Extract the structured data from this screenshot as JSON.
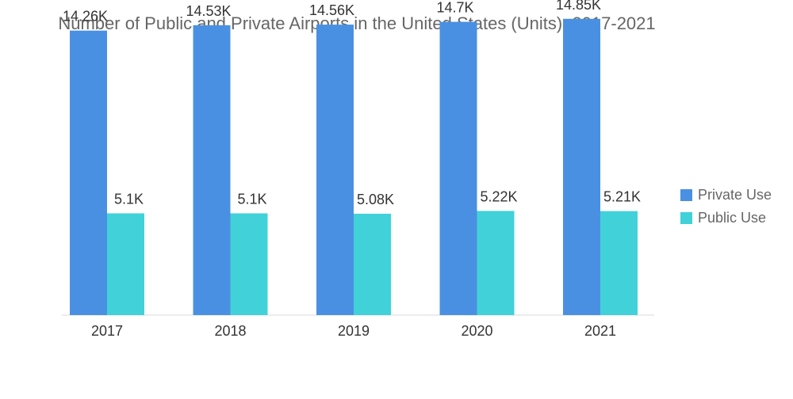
{
  "title": "Number of Public and Private Airports in the United States (Units), 2017-2021",
  "chart_data": {
    "type": "bar",
    "title": "Number of Public and Private Airports in the United States (Units), 2017-2021",
    "categories": [
      "2017",
      "2018",
      "2019",
      "2020",
      "2021"
    ],
    "series": [
      {
        "name": "Private Use",
        "color": "#4a90e2",
        "values": [
          14260,
          14530,
          14560,
          14700,
          14850
        ],
        "labels": [
          "14.26K",
          "14.53K",
          "14.56K",
          "14.7K",
          "14.85K"
        ]
      },
      {
        "name": "Public Use",
        "color": "#40d1d9",
        "values": [
          5100,
          5100,
          5080,
          5220,
          5210
        ],
        "labels": [
          "5.1K",
          "5.1K",
          "5.08K",
          "5.22K",
          "5.21K"
        ]
      }
    ],
    "xlabel": "",
    "ylabel": "",
    "ylim": [
      0,
      15000
    ],
    "grid": false,
    "legend_position": "right"
  }
}
